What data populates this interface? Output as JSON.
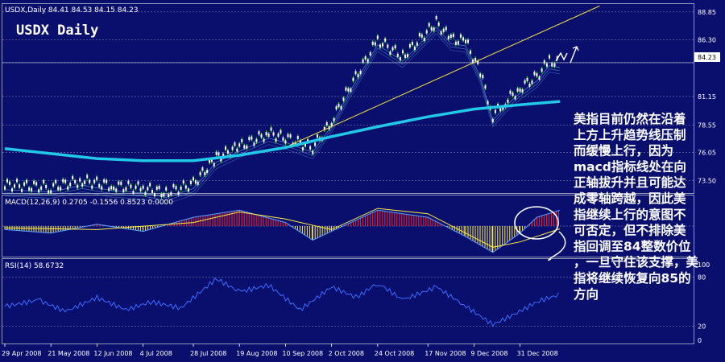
{
  "header": {
    "symbol_line": "USDX,Daily  84.41 84.53 84.15 84.23",
    "big_title": "USDX Daily"
  },
  "macd_header": "MACD(12,26,9) 0.2705 -0.1556 0.8523 0.0000",
  "rsi_header": "RSI(14) 58.6732",
  "annotation_lines": [
    "美指目前仍然在沿着",
    "上方上升趋势线压制",
    "而缓慢上行，因为",
    "macd指标线处在向",
    "正轴拔升并且可能达",
    "成零轴跨越，因此美",
    "指继续上行的意图不",
    "可否定，但不排除美",
    "指回调至84整数价位",
    "，一旦守住该支撑，美",
    "指将继续恢复向85的",
    "方向"
  ],
  "colors": {
    "background": "#0a0f6e",
    "grid": "#8f96b8",
    "candle": "#33dd33",
    "ma_long": "#22c8e8",
    "trendline": "#f0e040",
    "macd_pos": "#ff2020",
    "macd_neg": "#ffee44",
    "rsi": "#3a6cff"
  },
  "chart_data": {
    "type": "line",
    "symbol": "USDX",
    "timeframe": "Daily",
    "price_panel": {
      "yticks": [
        "88.85",
        "86.30",
        "84.23",
        "81.15",
        "78.55",
        "76.05",
        "73.50"
      ],
      "ylim": [
        72.5,
        89.5
      ],
      "current_price": 84.23,
      "series_close": [
        {
          "date": "2008-04-29",
          "value": 73.1
        },
        {
          "date": "2008-05-21",
          "value": 72.9
        },
        {
          "date": "2008-06-05",
          "value": 73.5
        },
        {
          "date": "2008-06-20",
          "value": 73.0
        },
        {
          "date": "2008-07-04",
          "value": 72.8
        },
        {
          "date": "2008-07-15",
          "value": 72.4
        },
        {
          "date": "2008-07-28",
          "value": 73.2
        },
        {
          "date": "2008-08-08",
          "value": 75.6
        },
        {
          "date": "2008-08-19",
          "value": 76.6
        },
        {
          "date": "2008-09-02",
          "value": 77.8
        },
        {
          "date": "2008-09-10",
          "value": 77.4
        },
        {
          "date": "2008-09-23",
          "value": 76.5
        },
        {
          "date": "2008-10-02",
          "value": 78.9
        },
        {
          "date": "2008-10-10",
          "value": 81.8
        },
        {
          "date": "2008-10-24",
          "value": 86.3
        },
        {
          "date": "2008-11-05",
          "value": 84.8
        },
        {
          "date": "2008-11-21",
          "value": 87.9
        },
        {
          "date": "2008-11-28",
          "value": 86.4
        },
        {
          "date": "2008-12-05",
          "value": 86.2
        },
        {
          "date": "2008-12-12",
          "value": 83.4
        },
        {
          "date": "2008-12-18",
          "value": 79.4
        },
        {
          "date": "2008-12-24",
          "value": 80.7
        },
        {
          "date": "2008-12-31",
          "value": 81.9
        },
        {
          "date": "2009-01-08",
          "value": 83.0
        },
        {
          "date": "2009-01-14",
          "value": 84.4
        },
        {
          "date": "2009-01-19",
          "value": 84.23
        }
      ],
      "series_ma_long": [
        {
          "date": "2008-04-29",
          "value": 76.4
        },
        {
          "date": "2008-06-12",
          "value": 75.5
        },
        {
          "date": "2008-07-04",
          "value": 75.3
        },
        {
          "date": "2008-07-28",
          "value": 75.3
        },
        {
          "date": "2008-08-19",
          "value": 75.8
        },
        {
          "date": "2008-09-10",
          "value": 76.5
        },
        {
          "date": "2008-10-02",
          "value": 77.5
        },
        {
          "date": "2008-10-24",
          "value": 78.4
        },
        {
          "date": "2008-11-17",
          "value": 79.3
        },
        {
          "date": "2008-12-09",
          "value": 80.0
        },
        {
          "date": "2008-12-31",
          "value": 80.4
        },
        {
          "date": "2009-01-19",
          "value": 80.7
        }
      ],
      "trendline": [
        {
          "date": "2008-09-12",
          "value": 76.7
        },
        {
          "date": "2009-02-07",
          "value": 89.4
        }
      ]
    },
    "macd_panel": {
      "name": "MACD(12,26,9)",
      "ylim": [
        -1.6,
        1.6
      ],
      "histogram": [
        {
          "date": "2008-04-29",
          "value": -0.2
        },
        {
          "date": "2008-05-21",
          "value": -0.4
        },
        {
          "date": "2008-06-12",
          "value": 0.1
        },
        {
          "date": "2008-07-04",
          "value": -0.3
        },
        {
          "date": "2008-07-28",
          "value": 0.5
        },
        {
          "date": "2008-08-19",
          "value": 0.9
        },
        {
          "date": "2008-09-10",
          "value": 0.2
        },
        {
          "date": "2008-09-23",
          "value": -0.8
        },
        {
          "date": "2008-10-02",
          "value": -0.3
        },
        {
          "date": "2008-10-24",
          "value": 0.9
        },
        {
          "date": "2008-11-17",
          "value": 0.5
        },
        {
          "date": "2008-12-05",
          "value": -0.6
        },
        {
          "date": "2008-12-18",
          "value": -1.5
        },
        {
          "date": "2008-12-31",
          "value": -0.4
        },
        {
          "date": "2009-01-08",
          "value": 0.5
        },
        {
          "date": "2009-01-19",
          "value": 0.9
        }
      ],
      "signal": [
        {
          "date": "2008-04-29",
          "value": -0.1
        },
        {
          "date": "2008-06-12",
          "value": -0.2
        },
        {
          "date": "2008-07-28",
          "value": 0.2
        },
        {
          "date": "2008-08-19",
          "value": 0.8
        },
        {
          "date": "2008-09-10",
          "value": 0.4
        },
        {
          "date": "2008-10-02",
          "value": -0.2
        },
        {
          "date": "2008-10-24",
          "value": 1.0
        },
        {
          "date": "2008-11-17",
          "value": 0.7
        },
        {
          "date": "2008-12-05",
          "value": -0.4
        },
        {
          "date": "2008-12-18",
          "value": -1.2
        },
        {
          "date": "2008-12-31",
          "value": -0.9
        },
        {
          "date": "2009-01-19",
          "value": -0.16
        }
      ]
    },
    "rsi_panel": {
      "name": "RSI(14)",
      "yticks": [
        "100",
        "80",
        "20",
        "0"
      ],
      "ylim": [
        0,
        100
      ],
      "series": [
        {
          "date": "2008-04-29",
          "value": 44
        },
        {
          "date": "2008-05-15",
          "value": 52
        },
        {
          "date": "2008-05-28",
          "value": 38
        },
        {
          "date": "2008-06-12",
          "value": 55
        },
        {
          "date": "2008-06-26",
          "value": 40
        },
        {
          "date": "2008-07-08",
          "value": 50
        },
        {
          "date": "2008-07-22",
          "value": 42
        },
        {
          "date": "2008-08-08",
          "value": 78
        },
        {
          "date": "2008-08-19",
          "value": 62
        },
        {
          "date": "2008-09-02",
          "value": 70
        },
        {
          "date": "2008-09-17",
          "value": 40
        },
        {
          "date": "2008-10-02",
          "value": 68
        },
        {
          "date": "2008-10-14",
          "value": 55
        },
        {
          "date": "2008-10-24",
          "value": 73
        },
        {
          "date": "2008-11-05",
          "value": 52
        },
        {
          "date": "2008-11-21",
          "value": 68
        },
        {
          "date": "2008-12-03",
          "value": 48
        },
        {
          "date": "2008-12-18",
          "value": 22
        },
        {
          "date": "2008-12-31",
          "value": 38
        },
        {
          "date": "2009-01-08",
          "value": 50
        },
        {
          "date": "2009-01-19",
          "value": 58.67
        }
      ]
    },
    "xticks": [
      {
        "date": "2008-04-29",
        "label": "29 Apr 2008"
      },
      {
        "date": "2008-05-21",
        "label": "21 May 2008"
      },
      {
        "date": "2008-06-12",
        "label": "12 Jun 2008"
      },
      {
        "date": "2008-07-04",
        "label": "4 Jul 2008"
      },
      {
        "date": "2008-07-28",
        "label": "28 Jul 2008"
      },
      {
        "date": "2008-08-19",
        "label": "19 Aug 2008"
      },
      {
        "date": "2008-09-10",
        "label": "10 Sep 2008"
      },
      {
        "date": "2008-10-02",
        "label": "2 Oct 2008"
      },
      {
        "date": "2008-10-24",
        "label": "24 Oct 2008"
      },
      {
        "date": "2008-11-17",
        "label": "17 Nov 2008"
      },
      {
        "date": "2008-12-09",
        "label": "9 Dec 2008"
      },
      {
        "date": "2008-12-31",
        "label": "31 Dec 2008"
      }
    ]
  }
}
